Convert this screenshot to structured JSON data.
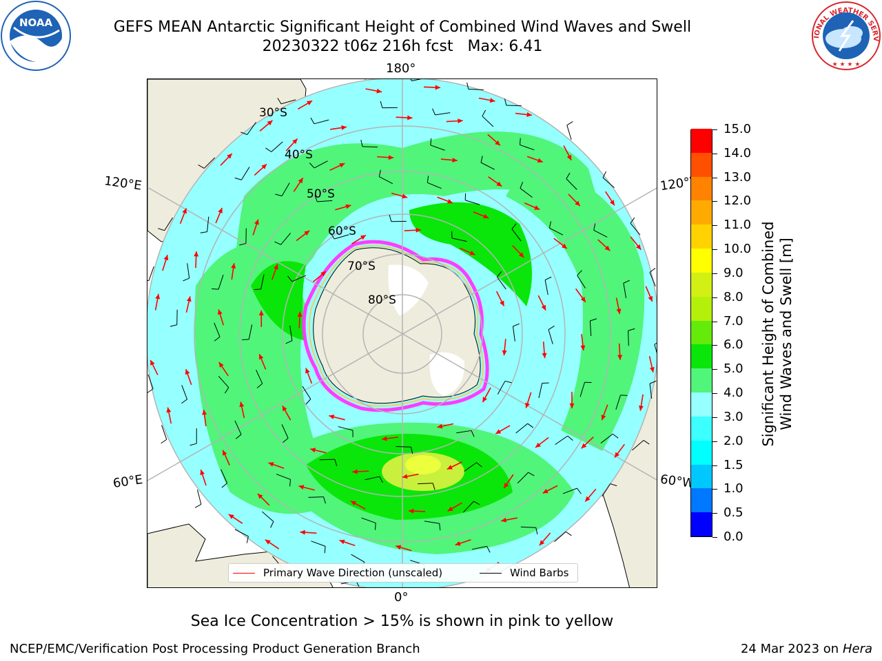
{
  "title": {
    "line1": "GEFS MEAN Antarctic Significant Height of Combined Wind Waves and Swell",
    "line2": "20230322 t06z 216h fcst   Max: 6.41"
  },
  "logos": {
    "left": {
      "text": "NOAA",
      "ring_text": "NATIONAL OCEANIC AND ATMOSPHERIC ADMINISTRATION · U.S. DEPARTMENT OF COMMERCE",
      "colors": {
        "bg": "#1e63b5",
        "wave": "#ffffff"
      }
    },
    "right": {
      "text": "NATIONAL WEATHER SERVICE",
      "colors": {
        "ring": "#d6262e",
        "bg": "#1e63b5",
        "text": "#d6262e"
      }
    }
  },
  "map": {
    "projection": "south polar stereographic",
    "lon_labels": {
      "top": "180°",
      "bottom": "0°",
      "upper_left": "120°E",
      "lower_left": "60°E",
      "upper_right": "120°W",
      "lower_right": "60°W"
    },
    "lat_labels": [
      "30°S",
      "40°S",
      "50°S",
      "60°S",
      "70°S",
      "80°S"
    ],
    "colors": {
      "land": "#eeecdc",
      "ocean_low": "#96ffff",
      "ocean_mid": "#50f57a",
      "ocean_high": "#0ae60a",
      "peak": "#c8f03c",
      "peak_core": "#ebff3c",
      "arrow": "#ff0000",
      "barb": "#000000",
      "sea_ice": "#ff3cff",
      "sea_ice_inner": "#ffc864",
      "grid": "#b4b4b4"
    }
  },
  "colorbar": {
    "label_line1": "Significant Height of Combined",
    "label_line2": "Wind Waves and Swell [m]",
    "ticks": [
      "0.0",
      "0.5",
      "1.0",
      "1.5",
      "2.0",
      "3.0",
      "4.0",
      "5.0",
      "6.0",
      "7.0",
      "8.0",
      "9.0",
      "10.0",
      "11.0",
      "12.0",
      "13.0",
      "14.0",
      "15.0"
    ],
    "colors": [
      "#0000ff",
      "#0078ff",
      "#00c8ff",
      "#00ffff",
      "#3cffff",
      "#96ffff",
      "#50f57a",
      "#0ae60a",
      "#64eb0a",
      "#b4f00a",
      "#d2f014",
      "#ffff00",
      "#ffd200",
      "#ffaa00",
      "#ff8200",
      "#ff5000",
      "#ff0000"
    ]
  },
  "legend": {
    "primary_wave": "Primary Wave Direction (unscaled)",
    "wind_barbs": "Wind Barbs",
    "colors": {
      "primary_wave": "#ff0000",
      "wind_barbs": "#000000"
    }
  },
  "annotation": "Sea Ice Concentration > 15% is shown in pink to yellow",
  "footer": {
    "left": "NCEP/EMC/Verification Post Processing Product Generation Branch",
    "date": "24 Mar 2023 on",
    "machine": "Hera"
  }
}
